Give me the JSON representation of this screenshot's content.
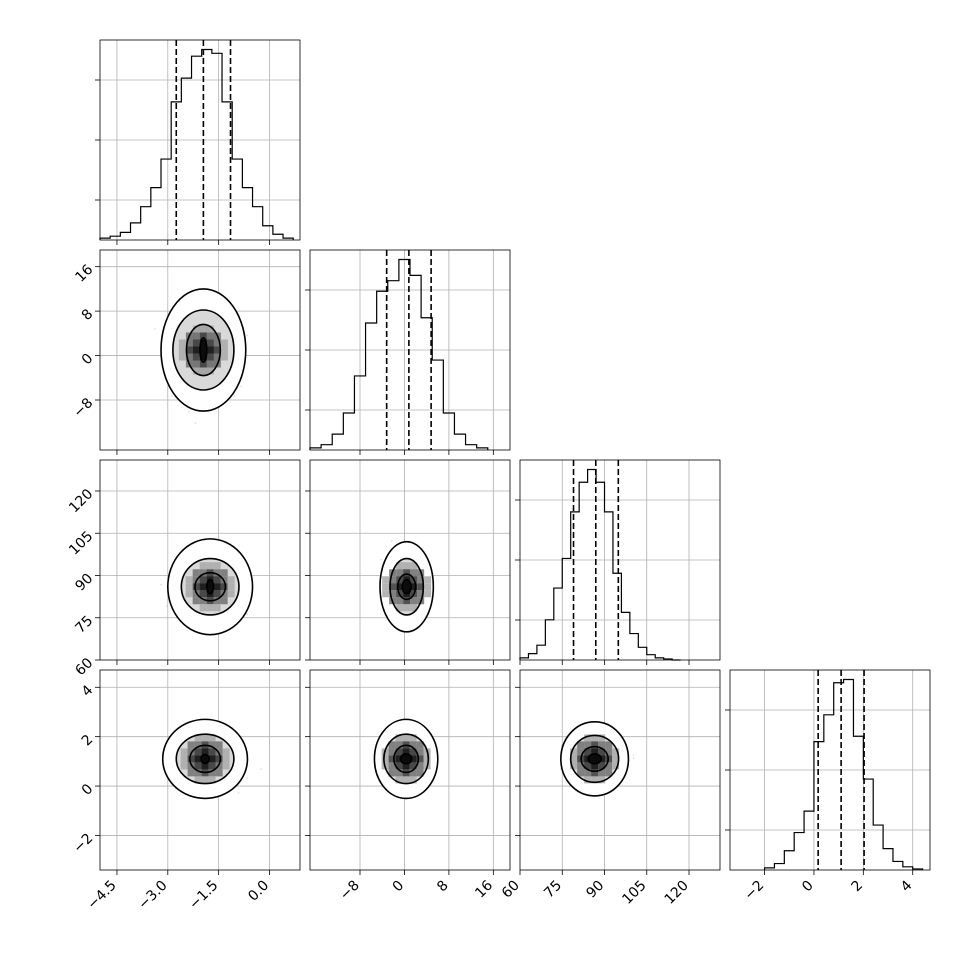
{
  "chart_data": {
    "type": "corner",
    "grid": true,
    "parameters": [
      {
        "range": [
          -5.0,
          0.9
        ],
        "ticks": [
          -4.5,
          -3.0,
          -1.5,
          0.0
        ],
        "tick_labels": [
          "−4.5",
          "−3.0",
          "−1.5",
          "0.0"
        ],
        "quantiles": [
          -2.75,
          -1.95,
          -1.15
        ],
        "histogram": {
          "bin_edges": [
            -5.0,
            -4.7,
            -4.4,
            -4.1,
            -3.8,
            -3.5,
            -3.2,
            -2.9,
            -2.6,
            -2.3,
            -2.0,
            -1.7,
            -1.4,
            -1.1,
            -0.8,
            -0.5,
            -0.2,
            0.1,
            0.4,
            0.7
          ],
          "counts": [
            2,
            4,
            8,
            18,
            35,
            55,
            85,
            145,
            170,
            193,
            200,
            196,
            145,
            85,
            55,
            35,
            15,
            6,
            2
          ]
        }
      },
      {
        "range": [
          -17.0,
          19.0
        ],
        "ticks": [
          -8,
          0,
          8,
          16
        ],
        "tick_labels": [
          "−8",
          "0",
          "8",
          "16"
        ],
        "quantiles": [
          -3.2,
          0.8,
          4.8
        ],
        "histogram": {
          "bin_edges": [
            -17.0,
            -15.0,
            -13.0,
            -11.0,
            -9.0,
            -7.0,
            -5.0,
            -3.0,
            -1.0,
            1.0,
            3.0,
            5.0,
            7.0,
            9.0,
            11.0,
            13.0,
            15.0
          ],
          "counts": [
            2,
            5,
            15,
            35,
            70,
            120,
            150,
            160,
            180,
            165,
            125,
            85,
            35,
            15,
            5,
            2
          ]
        }
      },
      {
        "range": [
          60.0,
          131.0
        ],
        "ticks": [
          60,
          75,
          90,
          105,
          120
        ],
        "tick_labels": [
          "60",
          "75",
          "90",
          "105",
          "120"
        ],
        "quantiles": [
          79.0,
          86.9,
          94.9
        ],
        "histogram": {
          "bin_edges": [
            60.0,
            63.0,
            66.0,
            69.0,
            72.0,
            75.0,
            78.0,
            81.0,
            84.0,
            87.0,
            90.0,
            93.0,
            96.0,
            99.0,
            102.0,
            105.0,
            108.0,
            111.0,
            114.0,
            117.0
          ],
          "counts": [
            2,
            6,
            14,
            38,
            68,
            96,
            140,
            168,
            180,
            168,
            140,
            82,
            45,
            25,
            12,
            5,
            2,
            1,
            0
          ]
        }
      },
      {
        "range": [
          -3.4,
          4.7
        ],
        "ticks": [
          -2,
          0,
          2,
          4
        ],
        "tick_labels": [
          "−2",
          "0",
          "2",
          "4"
        ],
        "quantiles": [
          0.17,
          1.1,
          2.03
        ],
        "histogram": {
          "bin_edges": [
            -2.0,
            -1.6,
            -1.2,
            -0.8,
            -0.4,
            0.0,
            0.4,
            0.8,
            1.2,
            1.6,
            2.0,
            2.4,
            2.8,
            3.2,
            3.6,
            4.0,
            4.4
          ],
          "counts": [
            2,
            6,
            18,
            35,
            55,
            120,
            145,
            175,
            178,
            125,
            85,
            42,
            20,
            8,
            3,
            1
          ]
        }
      }
    ],
    "pairs": [
      {
        "x_param": 0,
        "y_param": 1,
        "center": [
          -1.95,
          1.0
        ],
        "contours": [
          [
            0.1,
            2.2
          ],
          [
            0.5,
            4.6
          ],
          [
            0.9,
            7.2
          ],
          [
            1.25,
            11.0
          ]
        ]
      },
      {
        "x_param": 0,
        "y_param": 2,
        "center": [
          -1.75,
          86.0
        ],
        "contours": [
          [
            0.1,
            2.5
          ],
          [
            0.45,
            5.0
          ],
          [
            0.85,
            10.0
          ],
          [
            1.25,
            17.0
          ]
        ]
      },
      {
        "x_param": 1,
        "y_param": 2,
        "center": [
          0.4,
          86.0
        ],
        "contours": [
          [
            0.8,
            2.5
          ],
          [
            1.6,
            4.5
          ],
          [
            3.0,
            10.0
          ],
          [
            4.8,
            16.0
          ]
        ]
      },
      {
        "x_param": 0,
        "y_param": 3,
        "center": [
          -1.9,
          1.1
        ],
        "contours": [
          [
            0.12,
            0.18
          ],
          [
            0.45,
            0.55
          ],
          [
            0.85,
            1.0
          ],
          [
            1.25,
            1.6
          ]
        ]
      },
      {
        "x_param": 1,
        "y_param": 3,
        "center": [
          0.3,
          1.1
        ],
        "contours": [
          [
            1.0,
            0.2
          ],
          [
            2.2,
            0.55
          ],
          [
            4.0,
            1.0
          ],
          [
            5.7,
            1.6
          ]
        ]
      },
      {
        "x_param": 2,
        "y_param": 3,
        "center": [
          86.5,
          1.1
        ],
        "contours": [
          [
            2.3,
            0.2
          ],
          [
            4.8,
            0.5
          ],
          [
            8.5,
            0.95
          ],
          [
            12.0,
            1.5
          ]
        ]
      }
    ]
  }
}
